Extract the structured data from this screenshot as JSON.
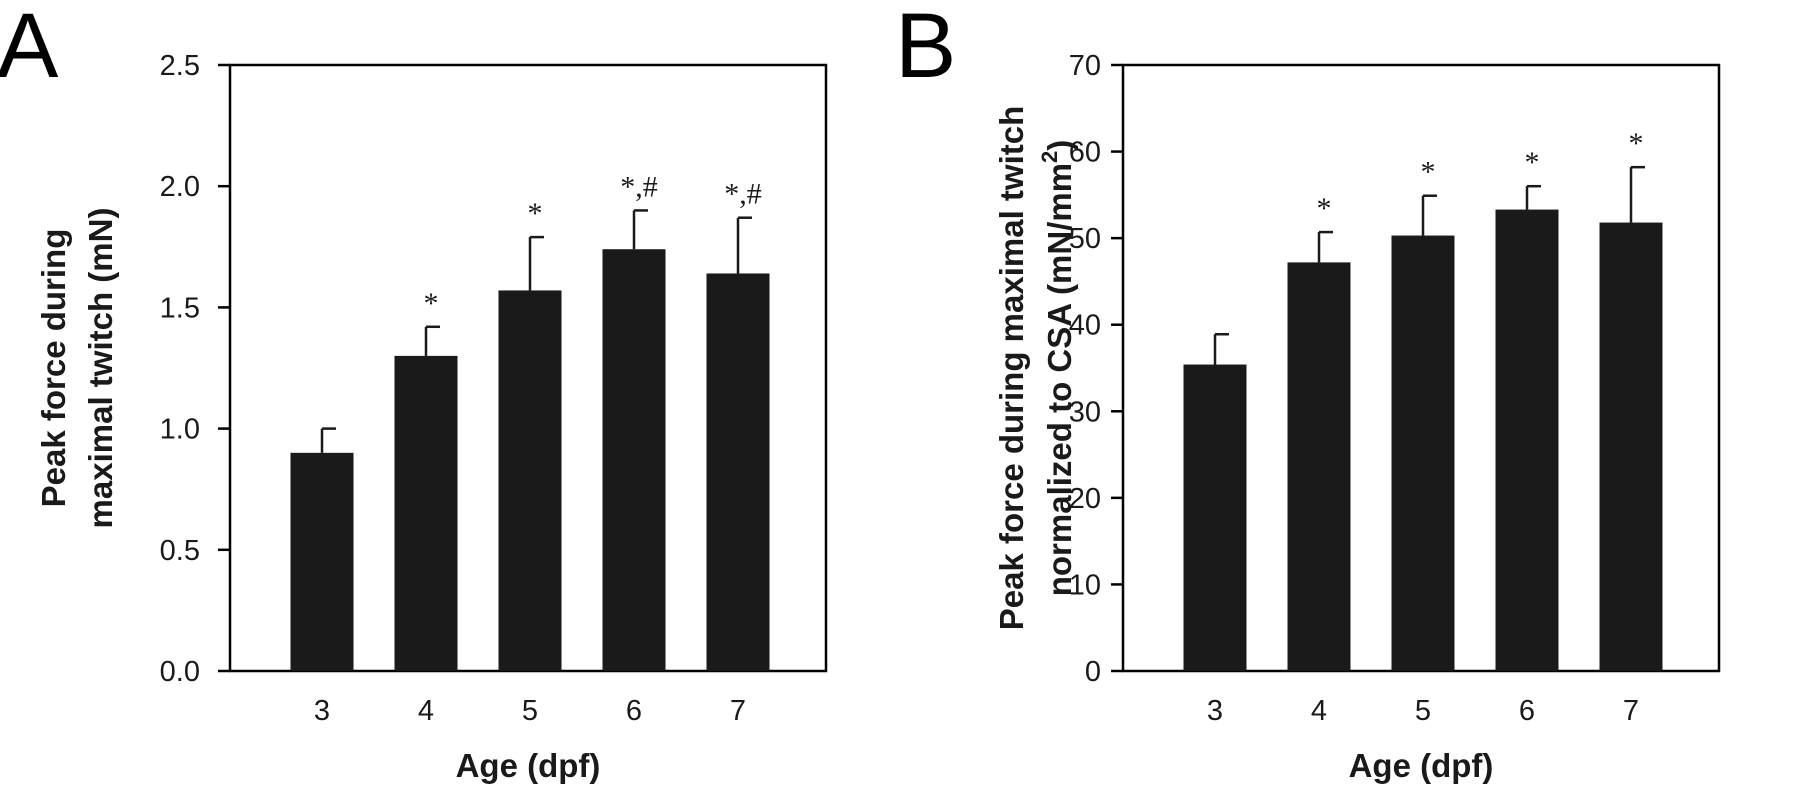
{
  "chart_data": [
    {
      "type": "bar",
      "panel": "A",
      "xlabel": "Age (dpf)",
      "ylabel_lines": [
        "Peak force during",
        "maximal twitch (mN)"
      ],
      "categories": [
        "3",
        "4",
        "5",
        "6",
        "7"
      ],
      "values": [
        0.9,
        1.3,
        1.57,
        1.74,
        1.64
      ],
      "error_upper": [
        1.0,
        1.42,
        1.79,
        1.9,
        1.87
      ],
      "annotations": [
        "",
        "*",
        "*",
        "*,#",
        "*,#"
      ],
      "ylim": [
        0,
        2.5
      ],
      "yticks": [
        "0.0",
        "0.5",
        "1.0",
        "1.5",
        "2.0",
        "2.5"
      ]
    },
    {
      "type": "bar",
      "panel": "B",
      "xlabel": "Age (dpf)",
      "ylabel_lines": [
        "Peak force during maximal twitch",
        "normalized to CSA (mN/mm",
        "2",
        ")"
      ],
      "categories": [
        "3",
        "4",
        "5",
        "6",
        "7"
      ],
      "values": [
        35.4,
        47.2,
        50.3,
        53.3,
        51.8
      ],
      "error_upper": [
        38.9,
        50.7,
        54.9,
        56.0,
        58.2
      ],
      "annotations": [
        "",
        "*",
        "*",
        "*",
        "*"
      ],
      "ylim": [
        0,
        70
      ],
      "yticks": [
        "0",
        "10",
        "20",
        "30",
        "40",
        "50",
        "60",
        "70"
      ]
    }
  ]
}
